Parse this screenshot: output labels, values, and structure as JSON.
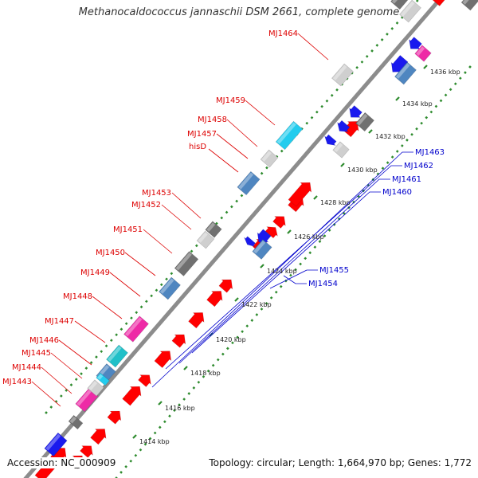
{
  "title": "Methanocaldococcus jannaschii DSM 2661, complete genome",
  "footer": {
    "accession": "Accession: NC_000909",
    "summary": "Topology: circular; Length: 1,664,970 bp; Genes: 1,772"
  },
  "colors": {
    "backbone": "#8c8c8c",
    "forward_label": "#dd0000",
    "reverse_label": "#0000cc",
    "kbp_tick": "#2e8b2e",
    "cds": "#ff0000",
    "cds_reverse": "#1a1aee",
    "gray": "#cfcfcf",
    "darkgray": "#707070",
    "steel": "#4f86c0",
    "cyan": "#22ccee",
    "magenta": "#ee2aa6",
    "teal": "#20c0c8"
  },
  "kbp_ticks": [
    "1414 kbp",
    "1416 kbp",
    "1418 kbp",
    "1420 kbp",
    "1422 kbp",
    "1424 kbp",
    "1426 kbp",
    "1428 kbp",
    "1430 kbp",
    "1432 kbp",
    "1434 kbp",
    "1436 kbp"
  ],
  "forward_labels": [
    "MJ1443",
    "MJ1444",
    "MJ1445",
    "MJ1446",
    "MJ1447",
    "MJ1448",
    "MJ1449",
    "MJ1450",
    "MJ1451",
    "MJ1452",
    "MJ1453",
    "hisD",
    "MJ1457",
    "MJ1458",
    "MJ1459",
    "MJ1464"
  ],
  "reverse_labels": [
    "MJ1454",
    "MJ1455",
    "MJ1460",
    "MJ1461",
    "MJ1462",
    "MJ1463"
  ]
}
